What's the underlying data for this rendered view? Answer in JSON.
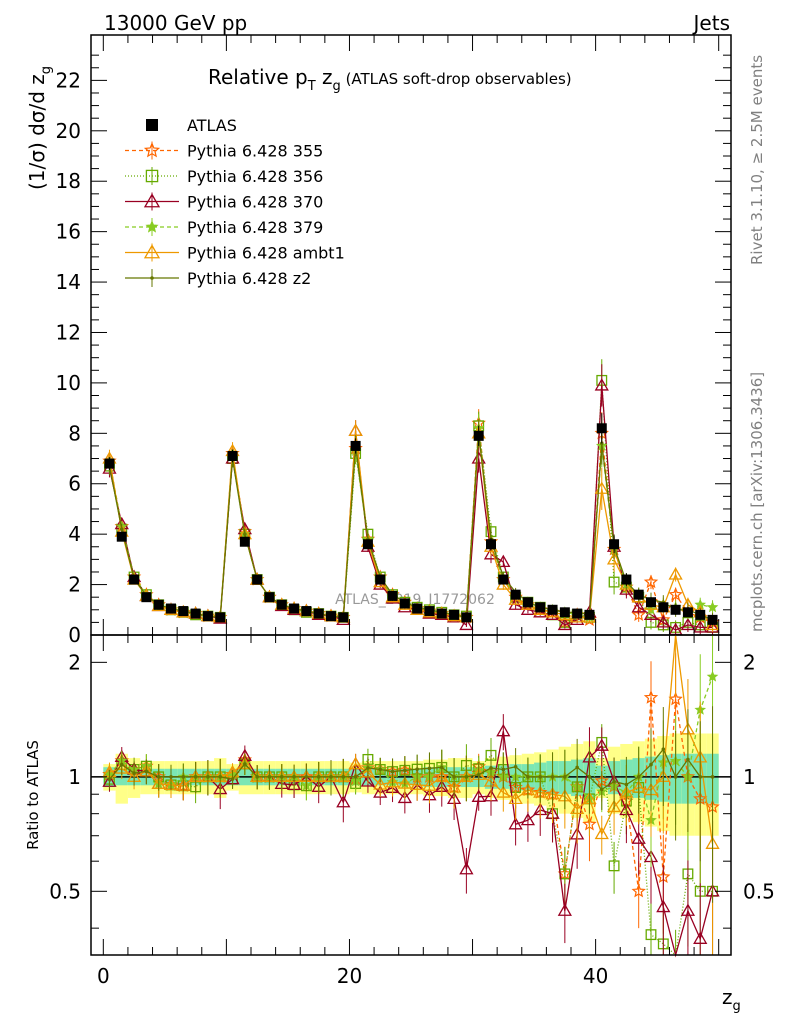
{
  "header": {
    "energy_label": "13000 GeV pp",
    "category_label": "Jets"
  },
  "side_labels": {
    "rivet": "Rivet 3.1.10, ≥ 2.5M events",
    "mcplots": "mcplots.cern.ch [arXiv:1306.3436]"
  },
  "watermark": "ATLAS_2019_I1772062",
  "chart_data": [
    {
      "type": "line",
      "title": "Relative pT zg (ATLAS soft-drop observables)",
      "title_parts": {
        "main": "Relative p",
        "sub_T": "T",
        "z": " z",
        "sub_g": "g",
        "rest": " (ATLAS soft-drop observables)"
      },
      "xlabel": "zg",
      "ylabel": "(1/σ) dσ/d zg",
      "xlim": [
        -1,
        51
      ],
      "ylim": [
        0,
        23.8
      ],
      "x_ticks": [
        0,
        20,
        40
      ],
      "y_ticks": [
        0,
        2,
        4,
        6,
        8,
        10,
        12,
        14,
        16,
        18,
        20,
        22
      ],
      "legend_position": "top-left",
      "data": {
        "name": "ATLAS",
        "x": [
          0.5,
          1.5,
          2.5,
          3.5,
          4.5,
          5.5,
          6.5,
          7.5,
          8.5,
          9.5,
          10.5,
          11.5,
          12.5,
          13.5,
          14.5,
          15.5,
          16.5,
          17.5,
          18.5,
          19.5,
          20.5,
          21.5,
          22.5,
          23.5,
          24.5,
          25.5,
          26.5,
          27.5,
          28.5,
          29.5,
          30.5,
          31.5,
          32.5,
          33.5,
          34.5,
          35.5,
          36.5,
          37.5,
          38.5,
          39.5,
          40.5,
          41.5,
          42.5,
          43.5,
          44.5,
          45.5,
          46.5,
          47.5,
          48.5,
          49.5
        ],
        "y": [
          6.8,
          3.9,
          2.2,
          1.5,
          1.2,
          1.05,
          0.95,
          0.85,
          0.75,
          0.7,
          7.1,
          3.7,
          2.2,
          1.5,
          1.2,
          1.05,
          0.95,
          0.85,
          0.75,
          0.7,
          7.5,
          3.6,
          2.2,
          1.55,
          1.25,
          1.05,
          0.95,
          0.85,
          0.8,
          0.7,
          7.9,
          3.6,
          2.2,
          1.6,
          1.3,
          1.1,
          1.0,
          0.9,
          0.85,
          0.8,
          8.2,
          3.6,
          2.2,
          1.6,
          1.3,
          1.1,
          1.0,
          0.9,
          0.8,
          0.6
        ],
        "err": [
          0.25,
          0.15,
          0.1,
          0.07,
          0.06,
          0.05,
          0.05,
          0.05,
          0.05,
          0.05,
          0.25,
          0.15,
          0.1,
          0.07,
          0.06,
          0.05,
          0.05,
          0.05,
          0.05,
          0.05,
          0.3,
          0.15,
          0.1,
          0.08,
          0.07,
          0.06,
          0.06,
          0.06,
          0.06,
          0.06,
          0.4,
          0.25,
          0.15,
          0.12,
          0.1,
          0.1,
          0.1,
          0.1,
          0.1,
          0.1,
          0.6,
          0.35,
          0.25,
          0.2,
          0.2,
          0.2,
          0.2,
          0.2,
          0.2,
          0.2
        ]
      },
      "series": [
        {
          "name": "Pythia 6.428 355",
          "color": "#ff6600",
          "dash": "4,3",
          "marker": "star-open",
          "y": [
            6.9,
            4.3,
            2.3,
            1.6,
            1.2,
            1.0,
            0.9,
            0.85,
            0.75,
            0.7,
            7.2,
            4.1,
            2.2,
            1.5,
            1.2,
            1.05,
            0.95,
            0.85,
            0.75,
            0.7,
            7.4,
            3.8,
            2.3,
            1.6,
            1.3,
            1.05,
            0.95,
            0.85,
            0.75,
            0.7,
            8.4,
            3.7,
            2.2,
            1.5,
            1.2,
            1.0,
            0.9,
            0.5,
            0.8,
            0.6,
            8.0,
            3.4,
            1.9,
            0.8,
            2.1,
            0.6,
            1.6,
            0.9,
            0.7,
            0.5
          ]
        },
        {
          "name": "Pythia 6.428 356",
          "color": "#66aa00",
          "dash": "1,2",
          "marker": "square-open",
          "y": [
            6.7,
            4.2,
            2.3,
            1.6,
            1.2,
            1.0,
            0.9,
            0.8,
            0.75,
            0.7,
            7.0,
            4.0,
            2.2,
            1.5,
            1.2,
            1.0,
            0.9,
            0.85,
            0.75,
            0.7,
            7.2,
            4.0,
            2.3,
            1.6,
            1.3,
            1.1,
            1.0,
            0.9,
            0.8,
            0.75,
            8.3,
            4.1,
            2.3,
            1.5,
            1.3,
            1.1,
            0.8,
            0.5,
            0.8,
            0.7,
            10.1,
            2.1,
            1.9,
            1.5,
            0.5,
            0.4,
            0.3,
            0.5,
            0.4,
            0.3
          ]
        },
        {
          "name": "Pythia 6.428 370",
          "color": "#990022",
          "dash": "",
          "marker": "triangle-open",
          "y": [
            6.6,
            4.4,
            2.3,
            1.55,
            1.15,
            1.0,
            0.9,
            0.85,
            0.75,
            0.65,
            7.0,
            4.2,
            2.2,
            1.5,
            1.15,
            1.0,
            0.95,
            0.8,
            0.75,
            0.6,
            8.1,
            3.5,
            2.0,
            1.45,
            1.1,
            1.0,
            0.85,
            0.8,
            0.7,
            0.4,
            7.0,
            3.2,
            2.9,
            1.2,
            1.0,
            0.9,
            0.8,
            0.4,
            0.6,
            0.9,
            9.9,
            3.5,
            1.8,
            1.1,
            0.8,
            0.5,
            0.2,
            0.4,
            0.3,
            0.3
          ]
        },
        {
          "name": "Pythia 6.428 379",
          "color": "#88cc22",
          "dash": "4,3",
          "marker": "star",
          "y": [
            6.9,
            4.3,
            2.3,
            1.6,
            1.15,
            1.0,
            0.95,
            0.85,
            0.75,
            0.7,
            7.2,
            4.0,
            2.2,
            1.5,
            1.2,
            1.05,
            0.9,
            0.85,
            0.75,
            0.7,
            7.3,
            3.8,
            2.3,
            1.5,
            1.2,
            1.05,
            0.95,
            0.9,
            0.8,
            0.7,
            8.2,
            3.7,
            2.2,
            1.6,
            1.3,
            1.1,
            1.0,
            0.9,
            0.8,
            0.7,
            7.5,
            3.4,
            2.0,
            1.6,
            1.0,
            1.2,
            1.1,
            0.9,
            1.2,
            1.1
          ]
        },
        {
          "name": "Pythia 6.428 ambt1",
          "color": "#ee9900",
          "dash": "",
          "marker": "triangle-open",
          "y": [
            7.0,
            4.1,
            2.2,
            1.55,
            1.15,
            1.0,
            0.9,
            0.85,
            0.75,
            0.7,
            7.3,
            4.0,
            2.2,
            1.5,
            1.2,
            1.05,
            0.95,
            0.85,
            0.75,
            0.7,
            8.1,
            3.7,
            2.1,
            1.5,
            1.2,
            1.0,
            0.9,
            0.85,
            0.75,
            0.7,
            8.0,
            3.5,
            2.0,
            1.4,
            1.2,
            1.0,
            0.9,
            0.8,
            0.7,
            0.7,
            5.8,
            3.0,
            2.0,
            1.5,
            1.2,
            1.1,
            2.4,
            1.2,
            0.9,
            0.4
          ]
        },
        {
          "name": "Pythia 6.428 z2",
          "color": "#667700",
          "dash": "",
          "marker": "dot",
          "y": [
            6.7,
            4.2,
            2.25,
            1.55,
            1.2,
            1.05,
            0.95,
            0.85,
            0.75,
            0.7,
            7.0,
            4.0,
            2.2,
            1.5,
            1.2,
            1.05,
            0.95,
            0.85,
            0.75,
            0.7,
            7.5,
            3.8,
            2.3,
            1.6,
            1.3,
            1.1,
            1.0,
            0.9,
            0.8,
            0.7,
            8.0,
            3.8,
            2.3,
            1.7,
            1.3,
            1.1,
            1.0,
            0.9,
            0.9,
            0.8,
            7.6,
            3.5,
            2.1,
            1.6,
            1.4,
            1.3,
            1.0,
            1.0,
            0.8,
            0.6
          ]
        }
      ]
    },
    {
      "type": "line",
      "title": "",
      "xlabel": "zg",
      "ylabel": "Ratio to ATLAS",
      "xlim": [
        -1,
        51
      ],
      "ylim": [
        0.34,
        2.36
      ],
      "x_ticks": [
        0,
        20,
        40
      ],
      "y_ticks": [
        0.5,
        1,
        2
      ],
      "reference_line": 1,
      "bands": {
        "inner_color": "#7be6b4",
        "outer_color": "#ffff88",
        "inner": [
          0.06,
          0.05,
          0.05,
          0.05,
          0.05,
          0.05,
          0.05,
          0.05,
          0.05,
          0.05,
          0.05,
          0.05,
          0.05,
          0.05,
          0.05,
          0.05,
          0.05,
          0.05,
          0.05,
          0.05,
          0.05,
          0.05,
          0.05,
          0.05,
          0.05,
          0.05,
          0.06,
          0.06,
          0.06,
          0.06,
          0.06,
          0.07,
          0.07,
          0.08,
          0.08,
          0.09,
          0.1,
          0.1,
          0.11,
          0.12,
          0.07,
          0.1,
          0.11,
          0.12,
          0.13,
          0.14,
          0.15,
          0.15,
          0.15,
          0.15
        ],
        "outer": [
          0.08,
          0.15,
          0.12,
          0.1,
          0.1,
          0.1,
          0.1,
          0.1,
          0.1,
          0.12,
          0.08,
          0.1,
          0.1,
          0.1,
          0.1,
          0.1,
          0.1,
          0.1,
          0.1,
          0.1,
          0.09,
          0.1,
          0.1,
          0.1,
          0.1,
          0.1,
          0.11,
          0.11,
          0.12,
          0.12,
          0.1,
          0.12,
          0.13,
          0.14,
          0.15,
          0.16,
          0.18,
          0.2,
          0.22,
          0.24,
          0.12,
          0.2,
          0.22,
          0.24,
          0.26,
          0.28,
          0.3,
          0.3,
          0.3,
          0.3
        ]
      }
    }
  ]
}
